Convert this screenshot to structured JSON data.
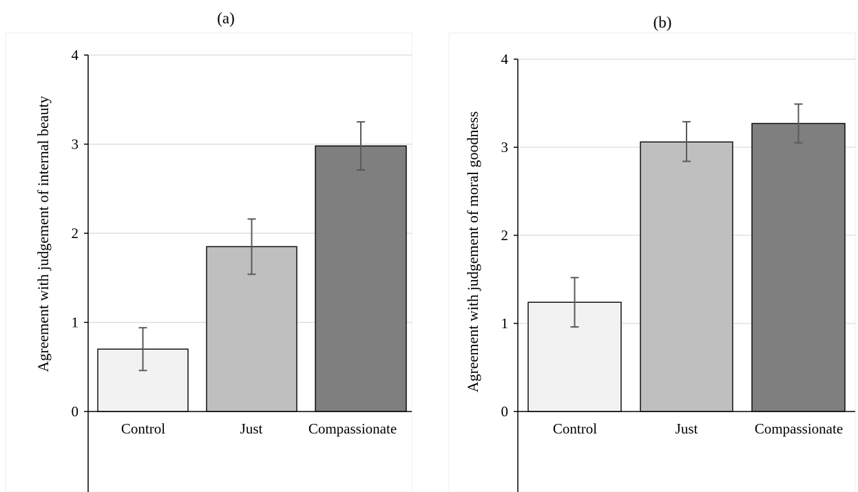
{
  "colors": {
    "background": "#ffffff",
    "grid": "#d9d9d9",
    "axis": "#000000",
    "error_bar": "#595959",
    "bar_control": "#f2f2f2",
    "bar_just": "#bfbfbf",
    "bar_compassionate": "#7f7f7f"
  },
  "chart_data": [
    {
      "type": "bar",
      "title": "(a)",
      "xlabel": "",
      "ylabel": "Agreement with judgement of internal beauty",
      "categories": [
        "Control",
        "Just",
        "Compassionate"
      ],
      "values": [
        0.7,
        1.85,
        2.98
      ],
      "error_low": [
        0.46,
        1.54,
        2.71
      ],
      "error_high": [
        0.94,
        2.16,
        3.25
      ],
      "ylim": [
        0,
        4
      ],
      "yticks": [
        "0",
        "1",
        "2",
        "3",
        "4"
      ],
      "grid": true,
      "legend": "none"
    },
    {
      "type": "bar",
      "title": "(b)",
      "xlabel": "",
      "ylabel": "Agreement with judgement of moral goodness",
      "categories": [
        "Control",
        "Just",
        "Compassionate"
      ],
      "values": [
        1.24,
        3.06,
        3.27
      ],
      "error_low": [
        0.96,
        2.84,
        3.05
      ],
      "error_high": [
        1.52,
        3.29,
        3.49
      ],
      "ylim": [
        0,
        4
      ],
      "yticks": [
        "0",
        "1",
        "2",
        "3",
        "4"
      ],
      "grid": true,
      "legend": "none"
    }
  ]
}
